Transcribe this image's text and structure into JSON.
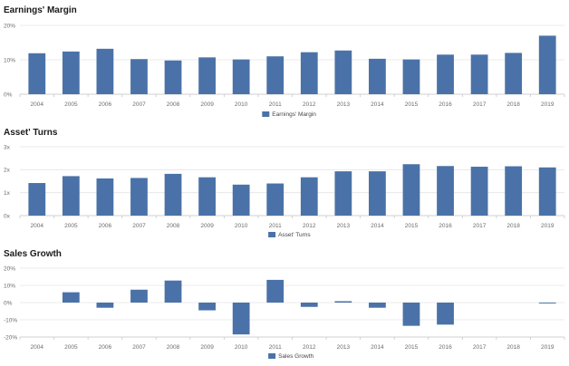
{
  "colors": {
    "bar": "#4a72a8",
    "grid": "#e4e4e4",
    "axis": "#c8c8c8"
  },
  "chart_data": [
    {
      "type": "bar",
      "title": "Earnings' Margin",
      "categories": [
        "2004",
        "2005",
        "2006",
        "2007",
        "2008",
        "2009",
        "2010",
        "2011",
        "2012",
        "2013",
        "2014",
        "2015",
        "2016",
        "2017",
        "2018",
        "2019"
      ],
      "series": [
        {
          "name": "Earnings' Margin",
          "values": [
            11.9,
            12.4,
            13.2,
            10.2,
            9.8,
            10.7,
            10.1,
            11.0,
            12.2,
            12.7,
            10.3,
            10.1,
            11.5,
            11.5,
            12.0,
            17.0
          ]
        }
      ],
      "ylim": [
        0,
        20
      ],
      "yticks": [
        0,
        10,
        20
      ],
      "ytick_labels": [
        "0%",
        "10%",
        "20%"
      ],
      "grid": true,
      "legend_position": "bottom"
    },
    {
      "type": "bar",
      "title": "Asset' Turns",
      "categories": [
        "2004",
        "2005",
        "2006",
        "2007",
        "2008",
        "2009",
        "2010",
        "2011",
        "2012",
        "2013",
        "2014",
        "2015",
        "2016",
        "2017",
        "2018",
        "2019"
      ],
      "series": [
        {
          "name": "Asset' Turns",
          "values": [
            1.42,
            1.72,
            1.62,
            1.64,
            1.82,
            1.67,
            1.35,
            1.4,
            1.67,
            1.93,
            1.93,
            2.24,
            2.16,
            2.13,
            2.15,
            2.1
          ]
        }
      ],
      "ylim": [
        0,
        3
      ],
      "yticks": [
        0,
        1,
        2,
        3
      ],
      "ytick_labels": [
        "0x",
        "1x",
        "2x",
        "3x"
      ],
      "grid": true,
      "legend_position": "bottom"
    },
    {
      "type": "bar",
      "title": "Sales Growth",
      "categories": [
        "2004",
        "2005",
        "2006",
        "2007",
        "2008",
        "2009",
        "2010",
        "2011",
        "2012",
        "2013",
        "2014",
        "2015",
        "2016",
        "2017",
        "2018",
        "2019"
      ],
      "series": [
        {
          "name": "Sales Growth",
          "values": [
            0,
            6.0,
            -3.0,
            7.5,
            12.8,
            -4.5,
            -18.5,
            13.2,
            -2.5,
            0.8,
            -3.0,
            -13.5,
            -12.8,
            0,
            0,
            -0.5
          ]
        }
      ],
      "ylim": [
        -20,
        20
      ],
      "yticks": [
        -20,
        -10,
        0,
        10,
        20
      ],
      "ytick_labels": [
        "-20%",
        "-10%",
        "0%",
        "10%",
        "20%"
      ],
      "grid": true,
      "legend_position": "bottom"
    }
  ]
}
